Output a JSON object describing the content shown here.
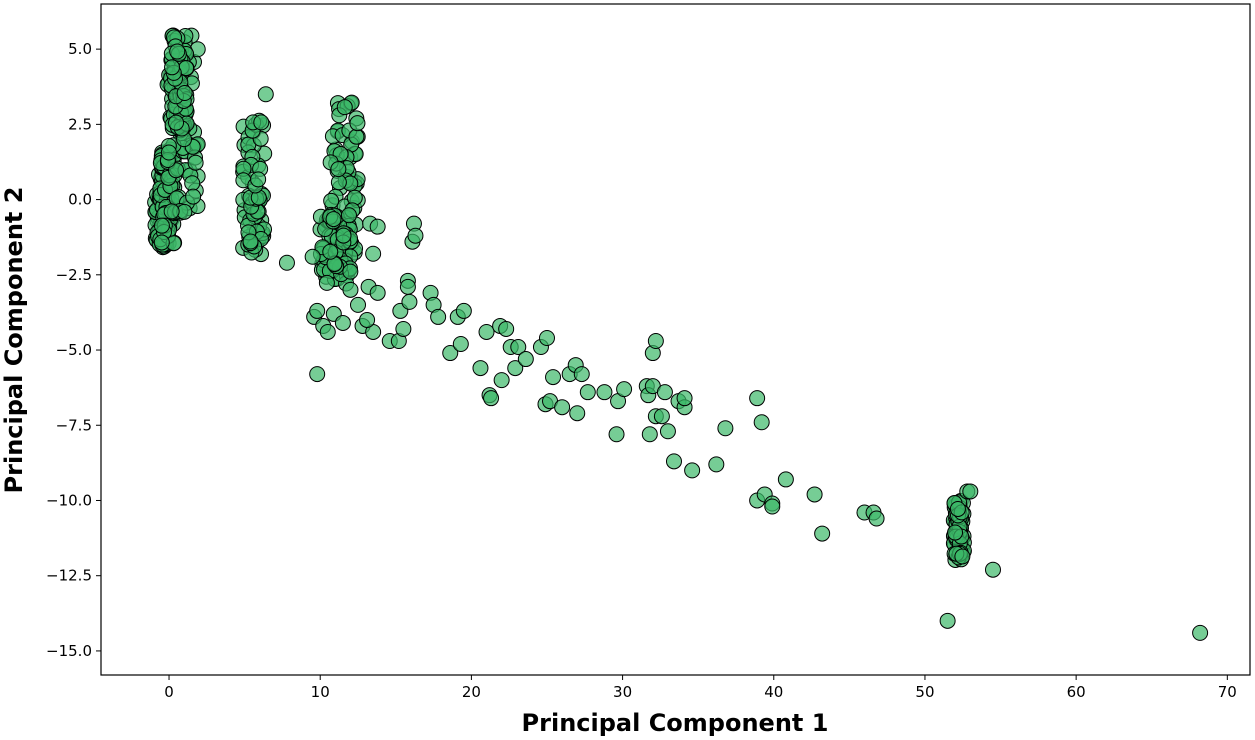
{
  "chart_data": {
    "type": "scatter",
    "title": "",
    "xlabel": "Principal Component 1",
    "ylabel": "Principal Component 2",
    "xlim": [
      -4.5,
      71.5
    ],
    "ylim": [
      -15.8,
      6.5
    ],
    "xticks": [
      0,
      10,
      20,
      30,
      40,
      50,
      60,
      70
    ],
    "yticks": [
      5.0,
      2.5,
      0.0,
      -2.5,
      -5.0,
      -7.5,
      -10.0,
      -12.5,
      -15.0
    ],
    "xtick_labels": [
      "0",
      "10",
      "20",
      "30",
      "40",
      "50",
      "60",
      "70"
    ],
    "ytick_labels": [
      "5.0",
      "2.5",
      "0.0",
      "−2.5",
      "−5.0",
      "−7.5",
      "−10.0",
      "−12.5",
      "−15.0"
    ],
    "grid": false,
    "legend": "none",
    "marker_color": "#3cb868",
    "marker_edge_color": "#000000",
    "marker_alpha": 0.7,
    "clusters": [
      {
        "x_range": [
          -1.0,
          0.0
        ],
        "y_range": [
          -1.6,
          0.9
        ]
      },
      {
        "x_range": [
          -0.6,
          0.4
        ],
        "y_range": [
          -1.5,
          1.6
        ]
      },
      {
        "x_range": [
          -0.1,
          1.9
        ],
        "y_range": [
          -0.5,
          5.5
        ]
      },
      {
        "x_range": [
          0.1,
          1.2
        ],
        "y_range": [
          2.0,
          5.5
        ]
      },
      {
        "x_range": [
          4.9,
          6.3
        ],
        "y_range": [
          -1.9,
          2.7
        ]
      },
      {
        "x_range": [
          10.6,
          12.5
        ],
        "y_range": [
          -1.8,
          3.4
        ]
      },
      {
        "x_range": [
          10.0,
          12.0
        ],
        "y_range": [
          -2.8,
          -0.5
        ]
      },
      {
        "x_range": [
          51.9,
          52.6
        ],
        "y_range": [
          -12.0,
          -10.0
        ]
      }
    ],
    "points": [
      [
        6.4,
        3.5
      ],
      [
        7.8,
        -2.1
      ],
      [
        9.5,
        -1.9
      ],
      [
        9.6,
        -3.9
      ],
      [
        9.8,
        -5.8
      ],
      [
        9.8,
        -3.7
      ],
      [
        10.2,
        -4.2
      ],
      [
        10.5,
        -4.4
      ],
      [
        10.9,
        -3.8
      ],
      [
        11.5,
        -4.1
      ],
      [
        12.0,
        -3.0
      ],
      [
        12.5,
        -3.5
      ],
      [
        12.8,
        -4.2
      ],
      [
        13.5,
        -4.4
      ],
      [
        13.1,
        -4.0
      ],
      [
        13.3,
        -0.8
      ],
      [
        13.5,
        -1.8
      ],
      [
        13.8,
        -0.9
      ],
      [
        13.2,
        -2.9
      ],
      [
        13.8,
        -3.1
      ],
      [
        14.6,
        -4.7
      ],
      [
        15.2,
        -4.7
      ],
      [
        15.3,
        -3.7
      ],
      [
        15.5,
        -4.3
      ],
      [
        15.8,
        -2.7
      ],
      [
        15.8,
        -2.9
      ],
      [
        16.1,
        -1.4
      ],
      [
        16.2,
        -0.8
      ],
      [
        16.3,
        -1.2
      ],
      [
        15.9,
        -3.4
      ],
      [
        17.3,
        -3.1
      ],
      [
        17.5,
        -3.5
      ],
      [
        17.8,
        -3.9
      ],
      [
        18.6,
        -5.1
      ],
      [
        19.1,
        -3.9
      ],
      [
        19.3,
        -4.8
      ],
      [
        19.5,
        -3.7
      ],
      [
        20.6,
        -5.6
      ],
      [
        21.0,
        -4.4
      ],
      [
        21.2,
        -6.5
      ],
      [
        21.3,
        -6.6
      ],
      [
        21.9,
        -4.2
      ],
      [
        22.0,
        -6.0
      ],
      [
        22.3,
        -4.3
      ],
      [
        22.6,
        -4.9
      ],
      [
        22.9,
        -5.6
      ],
      [
        23.1,
        -4.9
      ],
      [
        23.6,
        -5.3
      ],
      [
        24.6,
        -4.9
      ],
      [
        24.9,
        -6.8
      ],
      [
        25.0,
        -4.6
      ],
      [
        25.2,
        -6.7
      ],
      [
        25.4,
        -5.9
      ],
      [
        26.0,
        -6.9
      ],
      [
        26.5,
        -5.8
      ],
      [
        26.9,
        -5.5
      ],
      [
        27.0,
        -7.1
      ],
      [
        27.3,
        -5.8
      ],
      [
        27.7,
        -6.4
      ],
      [
        28.8,
        -6.4
      ],
      [
        29.6,
        -7.8
      ],
      [
        29.7,
        -6.7
      ],
      [
        30.1,
        -6.3
      ],
      [
        31.6,
        -6.2
      ],
      [
        31.7,
        -6.5
      ],
      [
        31.8,
        -7.8
      ],
      [
        32.0,
        -6.2
      ],
      [
        32.0,
        -5.1
      ],
      [
        32.2,
        -4.7
      ],
      [
        32.2,
        -7.2
      ],
      [
        32.6,
        -7.2
      ],
      [
        32.8,
        -6.4
      ],
      [
        33.0,
        -7.7
      ],
      [
        33.4,
        -8.7
      ],
      [
        33.7,
        -6.7
      ],
      [
        34.1,
        -6.9
      ],
      [
        34.1,
        -6.6
      ],
      [
        34.6,
        -9.0
      ],
      [
        36.2,
        -8.8
      ],
      [
        36.8,
        -7.6
      ],
      [
        38.9,
        -10.0
      ],
      [
        38.9,
        -6.6
      ],
      [
        39.2,
        -7.4
      ],
      [
        39.4,
        -9.8
      ],
      [
        39.9,
        -10.1
      ],
      [
        39.9,
        -10.2
      ],
      [
        40.8,
        -9.3
      ],
      [
        42.7,
        -9.8
      ],
      [
        43.2,
        -11.1
      ],
      [
        46.0,
        -10.4
      ],
      [
        46.6,
        -10.4
      ],
      [
        46.8,
        -10.6
      ],
      [
        51.5,
        -14.0
      ],
      [
        52.8,
        -9.7
      ],
      [
        53.0,
        -9.7
      ],
      [
        54.5,
        -12.3
      ],
      [
        68.2,
        -14.4
      ]
    ]
  }
}
